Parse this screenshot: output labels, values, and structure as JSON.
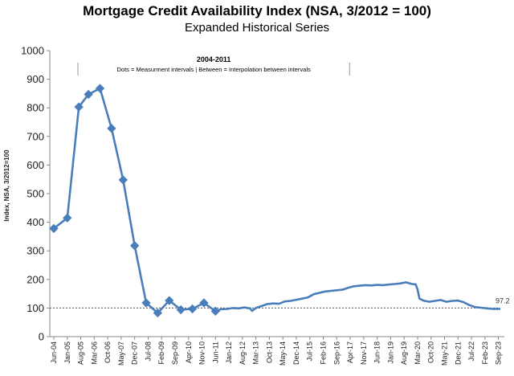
{
  "header": {
    "title": "Mortgage Credit Availability Index (NSA, 3/2012 = 100)",
    "subtitle": "Expanded Historical Series"
  },
  "colors": {
    "line": "#4a7ebb",
    "axis": "#888888",
    "reference": "#555555"
  },
  "chart_data": {
    "type": "line",
    "title": "Mortgage Credit Availability Index (NSA, 3/2012 = 100)",
    "subtitle": "Expanded Historical Series",
    "xlabel": "",
    "ylabel": "Index, NSA, 3/2012=100",
    "ylim": [
      0,
      1000
    ],
    "yticks": [
      0,
      100,
      200,
      300,
      400,
      500,
      600,
      700,
      800,
      900,
      1000
    ],
    "xticks": [
      "Jun-04",
      "Jan-05",
      "Aug-05",
      "Mar-06",
      "Oct-06",
      "May-07",
      "Dec-07",
      "Jul-08",
      "Feb-09",
      "Sep-09",
      "Apr-10",
      "Nov-10",
      "Jun-11",
      "Jan-12",
      "Aug-12",
      "Mar-13",
      "Oct-13",
      "May-14",
      "Dec-14",
      "Jul-15",
      "Feb-16",
      "Sep-16",
      "Apr-17",
      "Nov-17",
      "Jun-18",
      "Jan-19",
      "Aug-19",
      "Mar-20",
      "Oct-20",
      "May-21",
      "Dec-21",
      "Jul-22",
      "Feb-23",
      "Sep-23"
    ],
    "reference_line": {
      "value": 100,
      "style": "dotted"
    },
    "annotation": {
      "title": "2004-2011",
      "text": "Dots = Measurment intervals  |  Between = Interpolation between intervals",
      "from": "Jun-04",
      "to": "Sep-16"
    },
    "end_label": "97.2",
    "grid": false,
    "series": [
      {
        "markers": [
          [
            "2004-06",
            378
          ],
          [
            "2005-01",
            415
          ],
          [
            "2005-07",
            803
          ],
          [
            "2005-12",
            847
          ],
          [
            "2006-06",
            868
          ],
          [
            "2006-12",
            728
          ],
          [
            "2007-06",
            548
          ],
          [
            "2007-12",
            318
          ],
          [
            "2008-06",
            118
          ],
          [
            "2008-12",
            83
          ],
          [
            "2009-06",
            126
          ],
          [
            "2009-12",
            94
          ],
          [
            "2010-06",
            97
          ],
          [
            "2010-12",
            118
          ],
          [
            "2011-06",
            89
          ]
        ],
        "points": [
          [
            "2004-06",
            378
          ],
          [
            "2005-01",
            415
          ],
          [
            "2005-07",
            803
          ],
          [
            "2005-12",
            847
          ],
          [
            "2006-06",
            868
          ],
          [
            "2006-12",
            728
          ],
          [
            "2007-06",
            548
          ],
          [
            "2007-12",
            318
          ],
          [
            "2008-06",
            118
          ],
          [
            "2008-12",
            83
          ],
          [
            "2009-06",
            126
          ],
          [
            "2009-12",
            94
          ],
          [
            "2010-06",
            97
          ],
          [
            "2010-12",
            118
          ],
          [
            "2011-06",
            89
          ],
          [
            "2011-09",
            96
          ],
          [
            "2011-12",
            97
          ],
          [
            "2012-03",
            100
          ],
          [
            "2012-06",
            99
          ],
          [
            "2012-09",
            102
          ],
          [
            "2012-12",
            99
          ],
          [
            "2013-01",
            90
          ],
          [
            "2013-03",
            100
          ],
          [
            "2013-06",
            107
          ],
          [
            "2013-09",
            114
          ],
          [
            "2013-12",
            116
          ],
          [
            "2014-03",
            115
          ],
          [
            "2014-06",
            123
          ],
          [
            "2014-09",
            125
          ],
          [
            "2014-12",
            129
          ],
          [
            "2015-03",
            133
          ],
          [
            "2015-06",
            137
          ],
          [
            "2015-09",
            148
          ],
          [
            "2015-12",
            153
          ],
          [
            "2016-03",
            158
          ],
          [
            "2016-06",
            160
          ],
          [
            "2016-09",
            162
          ],
          [
            "2016-12",
            164
          ],
          [
            "2017-03",
            171
          ],
          [
            "2017-06",
            176
          ],
          [
            "2017-09",
            178
          ],
          [
            "2017-12",
            180
          ],
          [
            "2018-03",
            179
          ],
          [
            "2018-06",
            181
          ],
          [
            "2018-09",
            180
          ],
          [
            "2018-12",
            182
          ],
          [
            "2019-03",
            184
          ],
          [
            "2019-06",
            186
          ],
          [
            "2019-09",
            190
          ],
          [
            "2019-12",
            184
          ],
          [
            "2020-02",
            183
          ],
          [
            "2020-03",
            165
          ],
          [
            "2020-04",
            133
          ],
          [
            "2020-06",
            126
          ],
          [
            "2020-09",
            122
          ],
          [
            "2020-12",
            125
          ],
          [
            "2021-03",
            128
          ],
          [
            "2021-06",
            122
          ],
          [
            "2021-09",
            125
          ],
          [
            "2021-12",
            126
          ],
          [
            "2022-03",
            120
          ],
          [
            "2022-06",
            110
          ],
          [
            "2022-09",
            103
          ],
          [
            "2022-12",
            101
          ],
          [
            "2023-03",
            99
          ],
          [
            "2023-06",
            97
          ],
          [
            "2023-10",
            97.2
          ]
        ]
      }
    ]
  }
}
